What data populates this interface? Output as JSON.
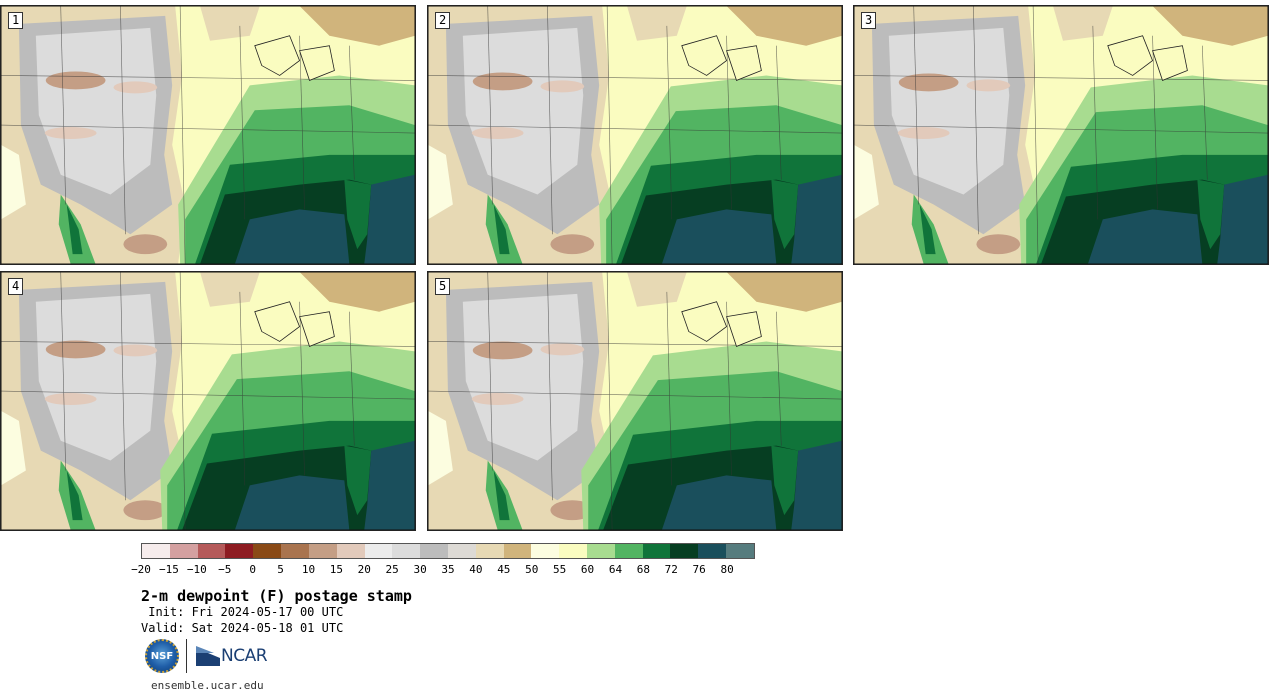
{
  "panels": [
    {
      "label": "1"
    },
    {
      "label": "2"
    },
    {
      "label": "3"
    },
    {
      "label": "4"
    },
    {
      "label": "5"
    }
  ],
  "colorbar": {
    "colors": [
      "#f6ecec",
      "#d4a0a0",
      "#b55a5a",
      "#8e1c22",
      "#8a4a16",
      "#a9744f",
      "#c49e85",
      "#e2cabb",
      "#ececec",
      "#dcdcdc",
      "#bcbcbc",
      "#dddad5",
      "#e7d9b4",
      "#d0b47c",
      "#fcfde0",
      "#fafcc0",
      "#a8dc90",
      "#52b462",
      "#10743a",
      "#063e22",
      "#1a4f5c",
      "#567c7e"
    ],
    "ticks": [
      "−20",
      "−15",
      "−10",
      "−5",
      "0",
      "5",
      "10",
      "15",
      "20",
      "25",
      "30",
      "35",
      "40",
      "45",
      "50",
      "55",
      "60",
      "64",
      "68",
      "72",
      "76",
      "80"
    ]
  },
  "title": "2-m dewpoint (F) postage stamp",
  "init": " Init: Fri 2024-05-17 00 UTC",
  "valid": "Valid: Sat 2024-05-18 01 UTC",
  "logos": {
    "nsf": "NSF",
    "ncar": "NCAR"
  },
  "site": "ensemble.ucar.edu"
}
